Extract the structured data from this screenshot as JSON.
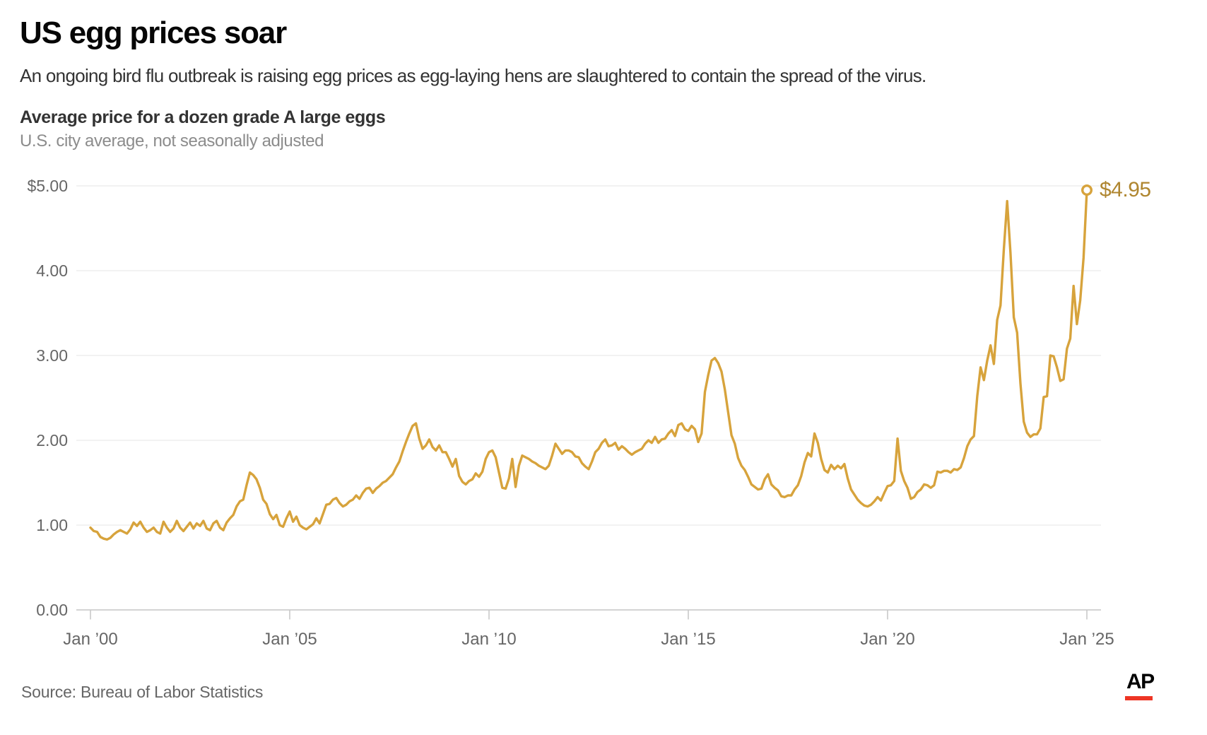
{
  "header": {
    "title": "US egg prices soar",
    "subtitle": "An ongoing bird flu outbreak is raising egg prices as egg-laying hens are slaughtered to contain the spread of the virus."
  },
  "chart": {
    "heading": "Average price for a dozen grade A large eggs",
    "subheading": "U.S. city average, not seasonally adjusted",
    "end_label": "$4.95"
  },
  "style": {
    "line_color": "#D7A33C",
    "end_label_color": "#AF8630",
    "grid_color": "#E9E9E9",
    "axis_color": "#C6C6C6",
    "tick_label_color": "#666666",
    "accent_red": "#EE3524"
  },
  "chart_data": {
    "type": "line",
    "title": "Average price for a dozen grade A large eggs",
    "subtitle": "U.S. city average, not seasonally adjusted",
    "unit": "USD per dozen",
    "frequency": "monthly",
    "x_start": "Jan 2000",
    "x_end": "Jan 2025",
    "ylim": [
      0,
      5
    ],
    "grid": true,
    "legend": false,
    "y_ticks": [
      {
        "label": "$5.00",
        "value": 5
      },
      {
        "label": "4.00",
        "value": 4
      },
      {
        "label": "3.00",
        "value": 3
      },
      {
        "label": "2.00",
        "value": 2
      },
      {
        "label": "1.00",
        "value": 1
      },
      {
        "label": "0.00",
        "value": 0
      }
    ],
    "x_ticks": [
      {
        "label": "Jan ’00",
        "month_index": 0
      },
      {
        "label": "Jan ’05",
        "month_index": 60
      },
      {
        "label": "Jan ’10",
        "month_index": 120
      },
      {
        "label": "Jan ’15",
        "month_index": 180
      },
      {
        "label": "Jan ’20",
        "month_index": 240
      },
      {
        "label": "Jan ’25",
        "month_index": 300
      }
    ],
    "annotation": {
      "label": "$4.95",
      "value": 4.95,
      "x": "Jan 2025"
    },
    "values": [
      0.97,
      0.93,
      0.92,
      0.86,
      0.84,
      0.83,
      0.85,
      0.89,
      0.92,
      0.94,
      0.92,
      0.9,
      0.95,
      1.03,
      0.99,
      1.04,
      0.97,
      0.92,
      0.94,
      0.97,
      0.92,
      0.9,
      1.04,
      0.97,
      0.92,
      0.96,
      1.05,
      0.97,
      0.93,
      0.98,
      1.03,
      0.96,
      1.02,
      0.99,
      1.05,
      0.96,
      0.94,
      1.02,
      1.05,
      0.97,
      0.94,
      1.03,
      1.08,
      1.12,
      1.22,
      1.28,
      1.3,
      1.47,
      1.62,
      1.59,
      1.54,
      1.44,
      1.3,
      1.25,
      1.13,
      1.07,
      1.12,
      1.0,
      0.98,
      1.08,
      1.16,
      1.04,
      1.1,
      1.0,
      0.97,
      0.95,
      0.98,
      1.01,
      1.08,
      1.02,
      1.13,
      1.24,
      1.25,
      1.3,
      1.32,
      1.26,
      1.22,
      1.24,
      1.28,
      1.3,
      1.35,
      1.31,
      1.38,
      1.43,
      1.44,
      1.38,
      1.43,
      1.46,
      1.5,
      1.52,
      1.56,
      1.6,
      1.68,
      1.75,
      1.87,
      1.98,
      2.08,
      2.17,
      2.2,
      2.02,
      1.9,
      1.94,
      2.01,
      1.92,
      1.88,
      1.94,
      1.86,
      1.86,
      1.78,
      1.69,
      1.78,
      1.58,
      1.51,
      1.48,
      1.52,
      1.54,
      1.61,
      1.57,
      1.63,
      1.78,
      1.86,
      1.88,
      1.8,
      1.62,
      1.44,
      1.43,
      1.55,
      1.78,
      1.45,
      1.7,
      1.82,
      1.8,
      1.78,
      1.75,
      1.73,
      1.7,
      1.68,
      1.66,
      1.7,
      1.82,
      1.96,
      1.9,
      1.84,
      1.88,
      1.88,
      1.86,
      1.81,
      1.8,
      1.73,
      1.69,
      1.66,
      1.75,
      1.86,
      1.9,
      1.97,
      2.01,
      1.93,
      1.94,
      1.97,
      1.89,
      1.93,
      1.9,
      1.86,
      1.83,
      1.86,
      1.88,
      1.9,
      1.96,
      2.0,
      1.97,
      2.04,
      1.97,
      2.01,
      2.02,
      2.08,
      2.12,
      2.05,
      2.18,
      2.2,
      2.13,
      2.11,
      2.17,
      2.13,
      1.98,
      2.08,
      2.57,
      2.77,
      2.94,
      2.97,
      2.91,
      2.81,
      2.6,
      2.33,
      2.06,
      1.96,
      1.79,
      1.7,
      1.65,
      1.57,
      1.48,
      1.45,
      1.42,
      1.43,
      1.54,
      1.6,
      1.48,
      1.44,
      1.41,
      1.34,
      1.33,
      1.35,
      1.35,
      1.42,
      1.47,
      1.58,
      1.74,
      1.85,
      1.81,
      2.08,
      1.97,
      1.78,
      1.65,
      1.62,
      1.71,
      1.66,
      1.7,
      1.67,
      1.72,
      1.55,
      1.42,
      1.36,
      1.3,
      1.26,
      1.23,
      1.22,
      1.24,
      1.28,
      1.33,
      1.29,
      1.38,
      1.46,
      1.47,
      1.52,
      2.02,
      1.64,
      1.52,
      1.44,
      1.31,
      1.33,
      1.39,
      1.42,
      1.48,
      1.47,
      1.44,
      1.47,
      1.63,
      1.62,
      1.64,
      1.64,
      1.62,
      1.66,
      1.65,
      1.68,
      1.79,
      1.93,
      2.01,
      2.05,
      2.52,
      2.86,
      2.71,
      2.94,
      3.12,
      2.9,
      3.42,
      3.59,
      4.25,
      4.82,
      4.21,
      3.45,
      3.27,
      2.67,
      2.22,
      2.09,
      2.04,
      2.07,
      2.07,
      2.14,
      2.51,
      2.52,
      3.0,
      2.99,
      2.86,
      2.7,
      2.72,
      3.08,
      3.2,
      3.82,
      3.37,
      3.65,
      4.15,
      4.95
    ]
  },
  "footer": {
    "source": "Source: Bureau of Labor Statistics",
    "logo_text": "AP"
  }
}
